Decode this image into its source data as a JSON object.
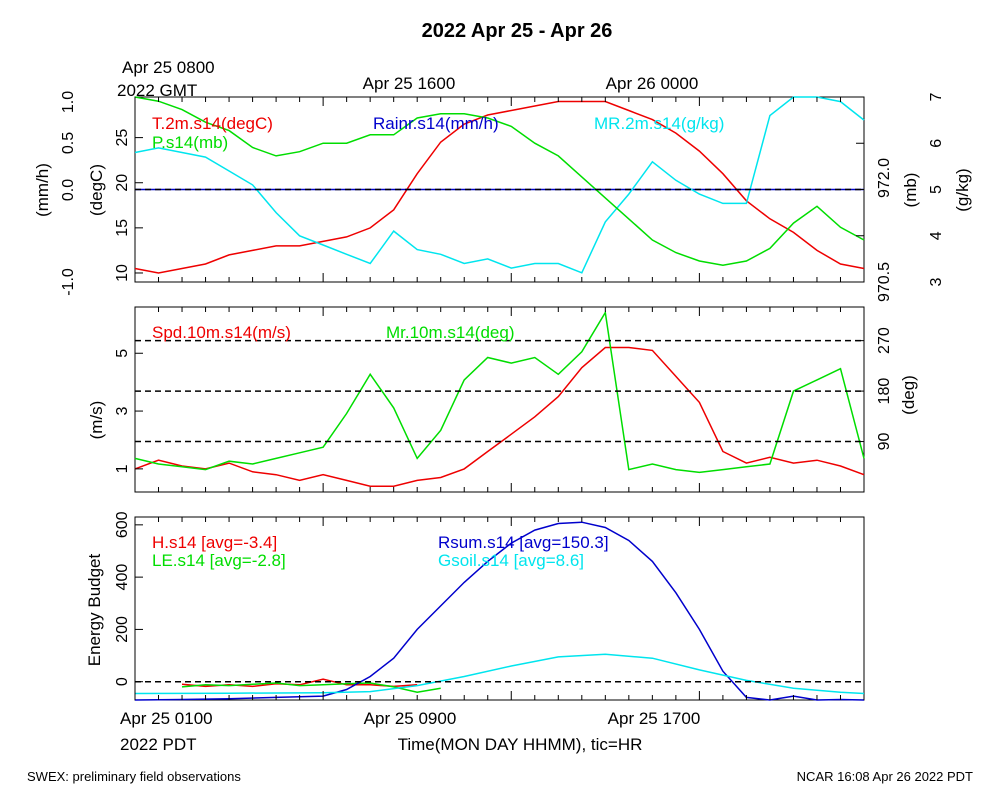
{
  "title": "2022 Apr 25 - Apr 26",
  "top_time_labels": {
    "start": "Apr 25 0800",
    "start_year": "2022 GMT",
    "mid": "Apr 25 1600",
    "end": "Apr 26 0000"
  },
  "bottom_time_labels": {
    "start": "Apr 25 0100",
    "start_year": "2022 PDT",
    "mid": "Apr 25 0900",
    "end": "Apr 25 1700",
    "xlabel": "Time(MON DAY HHMM), tic=HR"
  },
  "footer": {
    "left": "SWEX: preliminary field observations",
    "right": "NCAR 16:08 Apr 26 2022 PDT"
  },
  "colors": {
    "red": "#ee0000",
    "green": "#00dd00",
    "blue": "#0000cc",
    "cyan": "#00e5ee"
  },
  "chart_data": [
    {
      "type": "line",
      "x_unit": "hours since Apr 25 0100 PDT",
      "xlim": [
        0,
        31
      ],
      "axes": {
        "rain": {
          "ylabel": "(mm/h)",
          "ticks": [
            "1.0",
            "0.5",
            "0.0",
            "-1.0"
          ],
          "ylim": [
            -1,
            1
          ]
        },
        "temp": {
          "ylabel": "(degC)",
          "ticks": [
            "25",
            "20",
            "15",
            "10"
          ],
          "ylim": [
            9,
            29.5
          ]
        },
        "pres": {
          "ylabel": "(mb)",
          "ticks": [
            "972.0",
            "970.5"
          ],
          "ylim": [
            970.35,
            972.55
          ]
        },
        "mr": {
          "ylabel": "(g/kg)",
          "ticks": [
            "7",
            "6",
            "5",
            "4",
            "3"
          ],
          "ylim": [
            3,
            7
          ]
        }
      },
      "reference_line": 0.0,
      "series": [
        {
          "name": "T.2m.s14(degC)",
          "axis": "temp",
          "color": "#ee0000",
          "x": [
            0,
            1,
            2,
            3,
            4,
            5,
            6,
            7,
            8,
            9,
            10,
            11,
            12,
            13,
            14,
            15,
            16,
            17,
            18,
            19,
            20,
            21,
            22,
            23,
            24,
            25,
            26,
            27,
            28,
            29,
            30,
            31
          ],
          "values": [
            10.5,
            10,
            10.5,
            11,
            12,
            12.5,
            13,
            13,
            13.5,
            14,
            15,
            17,
            21,
            24.5,
            26.5,
            27.5,
            28,
            28.5,
            29,
            29,
            29,
            28,
            27,
            25.5,
            23.5,
            21,
            18,
            16,
            14.5,
            12.5,
            11,
            10.5
          ]
        },
        {
          "name": "Rainr.s14(mm/h)",
          "axis": "rain",
          "color": "#0000cc",
          "x": [
            0,
            31
          ],
          "values": [
            0,
            0
          ]
        },
        {
          "name": "MR.2m.s14(g/kg)",
          "axis": "mr",
          "color": "#00e5ee",
          "x": [
            0,
            1,
            2,
            3,
            4,
            5,
            6,
            7,
            8,
            9,
            10,
            11,
            12,
            13,
            14,
            15,
            16,
            17,
            18,
            19,
            20,
            21,
            22,
            23,
            24,
            25,
            26,
            27,
            28,
            29,
            30,
            31
          ],
          "values": [
            5.8,
            5.9,
            5.8,
            5.7,
            5.4,
            5.1,
            4.5,
            4,
            3.8,
            3.6,
            3.4,
            4.1,
            3.7,
            3.6,
            3.4,
            3.5,
            3.3,
            3.4,
            3.4,
            3.2,
            4.3,
            4.9,
            5.6,
            5.2,
            4.9,
            4.7,
            4.7,
            6.6,
            7,
            7,
            6.9,
            6.5
          ]
        },
        {
          "name": "P.s14(mb)",
          "axis": "pres",
          "color": "#00dd00",
          "x": [
            0,
            1,
            2,
            3,
            4,
            5,
            6,
            7,
            8,
            9,
            10,
            11,
            12,
            13,
            14,
            15,
            16,
            17,
            18,
            19,
            20,
            21,
            22,
            23,
            24,
            25,
            26,
            27,
            28,
            29,
            30,
            31
          ],
          "values": [
            972.55,
            972.5,
            972.4,
            972.25,
            972.15,
            971.95,
            971.85,
            971.9,
            972.0,
            972.0,
            972.1,
            972.1,
            972.3,
            972.35,
            972.35,
            972.3,
            972.2,
            972.0,
            971.85,
            971.6,
            971.35,
            971.1,
            970.85,
            970.7,
            970.6,
            970.55,
            970.6,
            970.75,
            971.05,
            971.25,
            971.0,
            970.85
          ]
        }
      ]
    },
    {
      "type": "line",
      "x_unit": "hours since Apr 25 0100 PDT",
      "xlim": [
        0,
        31
      ],
      "axes": {
        "spd": {
          "ylabel": "(m/s)",
          "ticks": [
            "1",
            "3",
            "5"
          ],
          "ylim": [
            0.2,
            6.6
          ]
        },
        "dir": {
          "ylabel": "(deg)",
          "ticks": [
            "90",
            "180",
            "270"
          ],
          "ylim": [
            0,
            330
          ]
        }
      },
      "reference_lines_deg": [
        90,
        180,
        270
      ],
      "series": [
        {
          "name": "Spd.10m.s14(m/s)",
          "axis": "spd",
          "color": "#ee0000",
          "x": [
            0,
            1,
            2,
            3,
            4,
            5,
            6,
            7,
            8,
            9,
            10,
            11,
            12,
            13,
            14,
            15,
            16,
            17,
            18,
            19,
            20,
            21,
            22,
            23,
            24,
            25,
            26,
            27,
            28,
            29,
            30,
            31
          ],
          "values": [
            1,
            1.3,
            1.1,
            1,
            1.2,
            0.9,
            0.8,
            0.6,
            0.8,
            0.6,
            0.4,
            0.4,
            0.6,
            0.7,
            1,
            1.6,
            2.2,
            2.8,
            3.5,
            4.5,
            5.2,
            5.2,
            5.1,
            4.2,
            3.3,
            1.6,
            1.2,
            1.4,
            1.2,
            1.3,
            1.1,
            0.8
          ]
        },
        {
          "name": "Mr.10m.s14(deg)",
          "axis": "dir",
          "color": "#00dd00",
          "x": [
            0,
            1,
            2,
            3,
            4,
            5,
            6,
            7,
            8,
            9,
            10,
            11,
            12,
            13,
            14,
            15,
            16,
            17,
            18,
            19,
            20,
            21,
            22,
            23,
            24,
            25,
            26,
            27,
            28,
            29,
            30,
            31
          ],
          "values": [
            60,
            50,
            45,
            40,
            55,
            50,
            60,
            70,
            80,
            140,
            210,
            150,
            60,
            110,
            200,
            240,
            230,
            240,
            210,
            250,
            320,
            40,
            50,
            40,
            35,
            40,
            45,
            50,
            180,
            200,
            220,
            60
          ]
        }
      ]
    },
    {
      "type": "line",
      "x_unit": "hours since Apr 25 0100 PDT",
      "xlim": [
        0,
        31
      ],
      "ylabel": "Energy Budget",
      "y_ticks": [
        "0",
        "200",
        "400",
        "600"
      ],
      "ylim": [
        -70,
        630
      ],
      "reference_line": 0,
      "series": [
        {
          "name": "H.s14 [avg=-3.4]",
          "color": "#ee0000",
          "x": [
            2,
            3,
            4,
            5,
            6,
            7,
            8,
            9,
            10,
            11,
            12
          ],
          "values": [
            -10,
            -18,
            -12,
            -18,
            -8,
            -12,
            10,
            -12,
            -12,
            -18,
            -12
          ]
        },
        {
          "name": "LE.s14 [avg=-2.8]",
          "color": "#00dd00",
          "x": [
            2,
            3,
            4,
            5,
            6,
            7,
            8,
            9,
            10,
            11,
            12,
            13
          ],
          "values": [
            -20,
            -12,
            -15,
            -10,
            -5,
            -15,
            -12,
            -8,
            -5,
            -20,
            -40,
            -25
          ]
        },
        {
          "name": "Rsum.s14 [avg=150.3]",
          "color": "#0000cc",
          "x": [
            0,
            2,
            4,
            6,
            8,
            9,
            10,
            11,
            12,
            13,
            14,
            15,
            16,
            17,
            18,
            19,
            20,
            21,
            22,
            23,
            24,
            25,
            26,
            27,
            28,
            29,
            30,
            31
          ],
          "values": [
            -70,
            -68,
            -65,
            -60,
            -55,
            -30,
            20,
            90,
            200,
            290,
            380,
            460,
            530,
            580,
            605,
            610,
            590,
            540,
            460,
            340,
            200,
            40,
            -60,
            -70,
            -55,
            -70,
            -68,
            -70
          ]
        },
        {
          "name": "Gsoil.s14 [avg=8.6]",
          "color": "#00e5ee",
          "x": [
            0,
            4,
            8,
            10,
            12,
            14,
            16,
            18,
            20,
            22,
            24,
            26,
            28,
            30,
            31
          ],
          "values": [
            -45,
            -44,
            -42,
            -38,
            -15,
            20,
            60,
            95,
            105,
            90,
            45,
            5,
            -25,
            -40,
            -45
          ]
        }
      ]
    }
  ]
}
